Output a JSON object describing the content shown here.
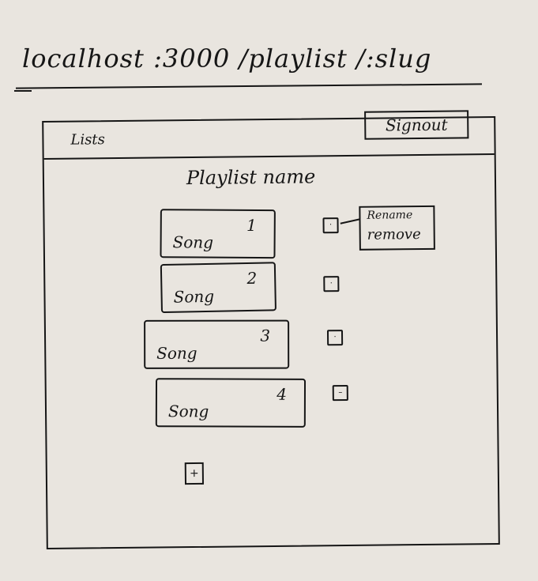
{
  "url": "localhost :3000 /playlist /:slug",
  "topbar": {
    "lists_label": "Lists",
    "signout_label": "Signout"
  },
  "playlist": {
    "name": "Playlist name"
  },
  "songs": [
    {
      "label": "Song",
      "number": "1"
    },
    {
      "label": "Song",
      "number": "2"
    },
    {
      "label": "Song",
      "number": "3"
    },
    {
      "label": "Song",
      "number": "4"
    }
  ],
  "checkbox_marks": [
    "·",
    "·",
    "·",
    "–"
  ],
  "context_menu": {
    "rename_label": "Rename",
    "remove_label": "remove"
  },
  "add_button_label": "+"
}
